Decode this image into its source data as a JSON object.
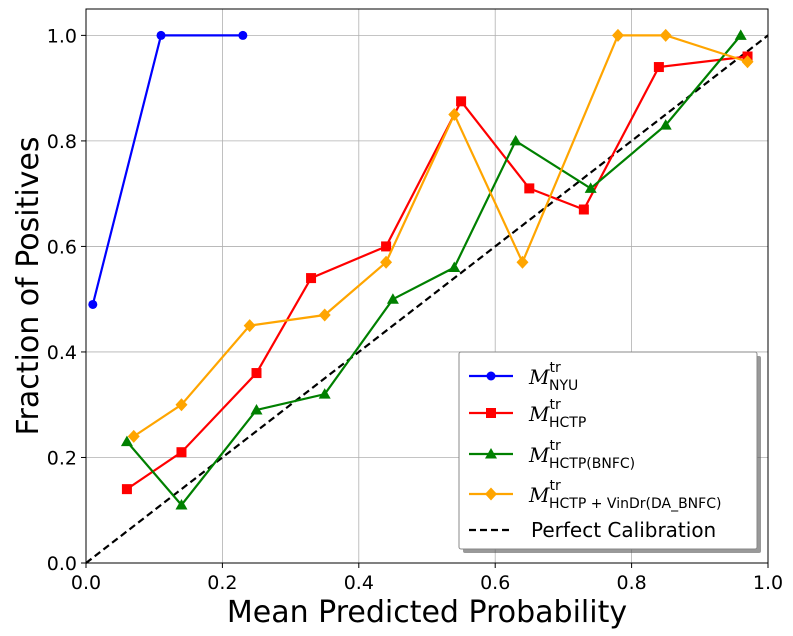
{
  "chart_data": {
    "type": "line",
    "xlabel": "Mean Predicted Probability",
    "ylabel": "Fraction of Positives",
    "xlim": [
      0.0,
      1.0
    ],
    "ylim": [
      0.0,
      1.05
    ],
    "x_ticks": [
      "0.0",
      "0.2",
      "0.4",
      "0.6",
      "0.8",
      "1.0"
    ],
    "y_ticks": [
      "0.0",
      "0.2",
      "0.4",
      "0.6",
      "0.8",
      "1.0"
    ],
    "grid": true,
    "legend_position": "bottom-right",
    "series": [
      {
        "name_main": "M",
        "name_sup": "tr",
        "name_sub": "NYU",
        "color": "#0000ff",
        "marker": "circle",
        "x": [
          0.01,
          0.11,
          0.23
        ],
        "y": [
          0.49,
          1.0,
          1.0
        ]
      },
      {
        "name_main": "M",
        "name_sup": "tr",
        "name_sub": "HCTP",
        "color": "#ff0000",
        "marker": "square",
        "x": [
          0.06,
          0.14,
          0.25,
          0.33,
          0.44,
          0.55,
          0.65,
          0.73,
          0.84,
          0.97
        ],
        "y": [
          0.14,
          0.21,
          0.36,
          0.54,
          0.6,
          0.875,
          0.71,
          0.67,
          0.94,
          0.96
        ]
      },
      {
        "name_main": "M",
        "name_sup": "tr",
        "name_sub": "HCTP(BNFC)",
        "color": "#008000",
        "marker": "triangle",
        "x": [
          0.06,
          0.14,
          0.25,
          0.35,
          0.45,
          0.54,
          0.63,
          0.74,
          0.85,
          0.96
        ],
        "y": [
          0.23,
          0.11,
          0.29,
          0.32,
          0.5,
          0.56,
          0.8,
          0.71,
          0.83,
          1.0
        ]
      },
      {
        "name_main": "M",
        "name_sup": "tr",
        "name_sub": "HCTP + VinDr(DA_BNFC)",
        "color": "#ffa500",
        "marker": "diamond",
        "x": [
          0.07,
          0.14,
          0.24,
          0.35,
          0.44,
          0.54,
          0.64,
          0.78,
          0.85,
          0.97
        ],
        "y": [
          0.24,
          0.3,
          0.45,
          0.47,
          0.57,
          0.85,
          0.57,
          1.0,
          1.0,
          0.95
        ]
      }
    ],
    "reference_line": {
      "name": "Perfect Calibration",
      "x": [
        0,
        1
      ],
      "y": [
        0,
        1
      ],
      "color": "#000000",
      "style": "dashed"
    }
  }
}
